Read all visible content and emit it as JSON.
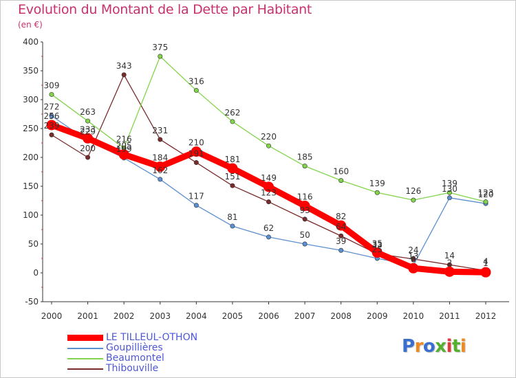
{
  "header": {
    "title": "Evolution du Montant de la Dette par Habitant",
    "unit": "(en €)"
  },
  "logo": {
    "text": "Proxiti",
    "colors": [
      "#3a6fd0",
      "#f08a20",
      "#3a6fd0",
      "#55b030",
      "#e03a3a",
      "#55b030",
      "#f08a20"
    ]
  },
  "colors": {
    "title": "#c8306e",
    "axis_text": "#333333",
    "legend_text": "#4e57d6"
  },
  "chart_data": {
    "type": "line",
    "x": [
      "2000",
      "2001",
      "2002",
      "2003",
      "2004",
      "2005",
      "2006",
      "2007",
      "2008",
      "2009",
      "2010",
      "2011",
      "2012"
    ],
    "ylim": [
      -50,
      400
    ],
    "yticks": [
      -50,
      0,
      50,
      100,
      150,
      200,
      250,
      300,
      350,
      400
    ],
    "grid": false,
    "legend_position": "bottom-left",
    "series": [
      {
        "name": "LE TILLEUL-OTHON",
        "color": "#ff0000",
        "values": [
          256,
          233,
          205,
          184,
          210,
          181,
          149,
          116,
          82,
          35,
          8,
          2,
          1
        ],
        "labels": [
          "256",
          "233",
          "205",
          "184",
          "210",
          "181",
          "149",
          "116",
          "82",
          "35",
          "8",
          "2",
          "1"
        ]
      },
      {
        "name": "Goupillières",
        "color": "#5a8fd0",
        "values": [
          272,
          229,
          199,
          162,
          117,
          81,
          62,
          50,
          39,
          25,
          13,
          130,
          120
        ],
        "labels": [
          "272",
          "229",
          "199",
          "162",
          "117",
          "81",
          "62",
          "50",
          "39",
          "25",
          "13",
          "130",
          "120"
        ]
      },
      {
        "name": "Beaumontel",
        "color": "#82d44a",
        "values": [
          309,
          263,
          216,
          375,
          316,
          262,
          220,
          185,
          160,
          139,
          126,
          139,
          123
        ],
        "labels": [
          "309",
          "263",
          "216",
          "375",
          "316",
          "262",
          "220",
          "185",
          "160",
          "139",
          "126",
          "139",
          "123"
        ]
      },
      {
        "name": "Thibouville",
        "color": "#7a2a2a",
        "values": [
          239,
          200,
          343,
          231,
          191,
          151,
          123,
          93,
          64,
          33,
          24,
          14,
          4
        ],
        "labels": [
          "239",
          "200",
          "343",
          "231",
          "191",
          "151",
          "123",
          "93",
          "64",
          "33",
          "24",
          "14",
          "4"
        ]
      }
    ]
  }
}
